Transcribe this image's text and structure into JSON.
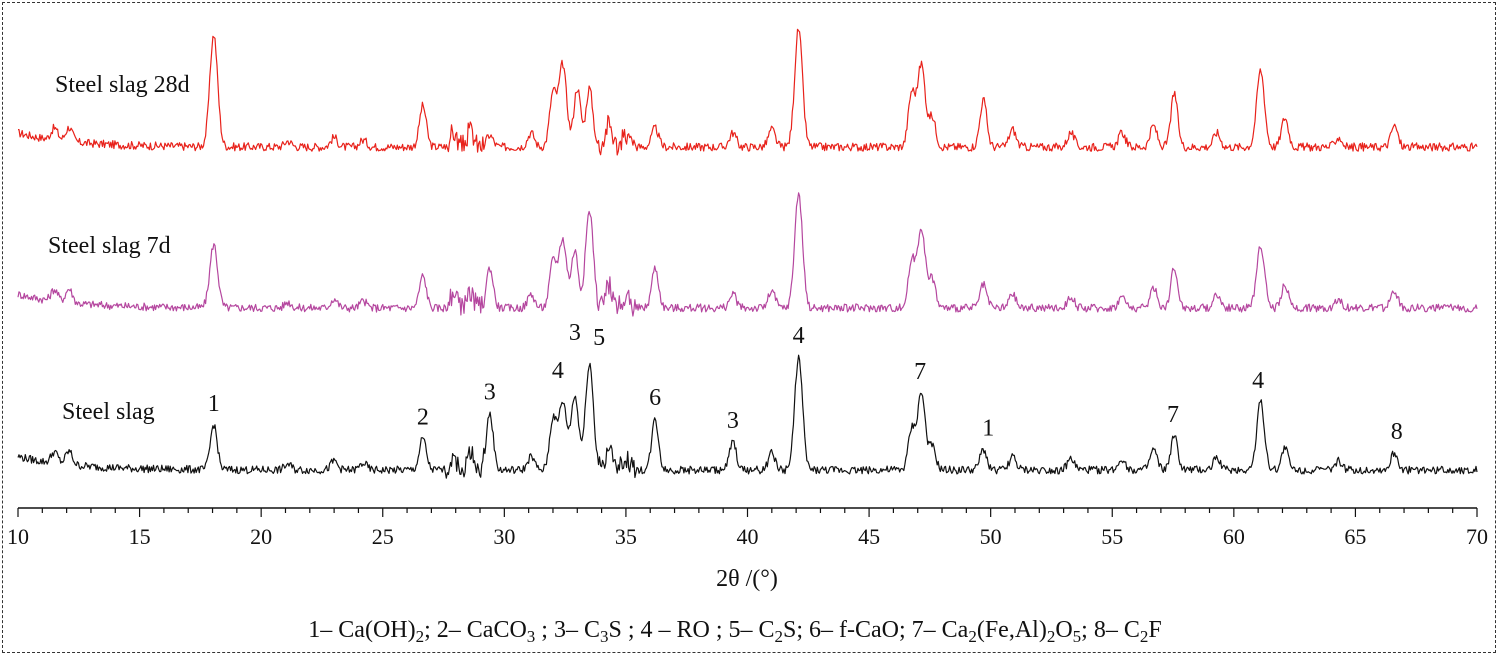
{
  "chart_data": {
    "type": "line",
    "title": "",
    "xlabel": "2θ /(°)",
    "ylabel": "",
    "xlim": [
      10,
      70
    ],
    "xticks": [
      10,
      15,
      20,
      25,
      30,
      35,
      40,
      45,
      50,
      55,
      60,
      65,
      70
    ],
    "grid": false,
    "series": [
      {
        "name": "Steel slag 28d",
        "color": "#e8221b",
        "peaks": [
          [
            11.5,
            0.1
          ],
          [
            12.1,
            0.12
          ],
          [
            18.05,
            0.95
          ],
          [
            21.1,
            0.05
          ],
          [
            23.0,
            0.08
          ],
          [
            24.2,
            0.06
          ],
          [
            26.65,
            0.35
          ],
          [
            27.9,
            0.12
          ],
          [
            28.6,
            0.14
          ],
          [
            29.4,
            0.1
          ],
          [
            31.1,
            0.12
          ],
          [
            32.0,
            0.45
          ],
          [
            32.4,
            0.7
          ],
          [
            33.0,
            0.5
          ],
          [
            33.5,
            0.5
          ],
          [
            34.3,
            0.2
          ],
          [
            35.0,
            0.1
          ],
          [
            36.2,
            0.16
          ],
          [
            39.4,
            0.12
          ],
          [
            41.0,
            0.15
          ],
          [
            42.1,
            1.0
          ],
          [
            46.75,
            0.45
          ],
          [
            47.15,
            0.7
          ],
          [
            47.6,
            0.25
          ],
          [
            49.7,
            0.4
          ],
          [
            50.9,
            0.15
          ],
          [
            53.3,
            0.12
          ],
          [
            55.4,
            0.12
          ],
          [
            56.7,
            0.18
          ],
          [
            57.55,
            0.45
          ],
          [
            59.3,
            0.12
          ],
          [
            61.1,
            0.65
          ],
          [
            62.1,
            0.25
          ],
          [
            64.3,
            0.08
          ],
          [
            66.6,
            0.18
          ]
        ]
      },
      {
        "name": "Steel slag 7d",
        "color": "#b5479f",
        "peaks": [
          [
            11.5,
            0.1
          ],
          [
            12.1,
            0.12
          ],
          [
            18.05,
            0.55
          ],
          [
            21.1,
            0.05
          ],
          [
            23.0,
            0.08
          ],
          [
            24.2,
            0.06
          ],
          [
            26.65,
            0.28
          ],
          [
            27.9,
            0.12
          ],
          [
            28.6,
            0.14
          ],
          [
            29.4,
            0.35
          ],
          [
            31.1,
            0.12
          ],
          [
            32.0,
            0.4
          ],
          [
            32.4,
            0.6
          ],
          [
            32.9,
            0.5
          ],
          [
            33.5,
            0.85
          ],
          [
            34.3,
            0.2
          ],
          [
            35.0,
            0.1
          ],
          [
            36.2,
            0.35
          ],
          [
            39.4,
            0.12
          ],
          [
            41.0,
            0.15
          ],
          [
            42.1,
            1.0
          ],
          [
            46.75,
            0.4
          ],
          [
            47.15,
            0.7
          ],
          [
            47.6,
            0.25
          ],
          [
            49.7,
            0.2
          ],
          [
            50.9,
            0.12
          ],
          [
            53.3,
            0.1
          ],
          [
            55.4,
            0.1
          ],
          [
            56.7,
            0.18
          ],
          [
            57.55,
            0.35
          ],
          [
            59.3,
            0.12
          ],
          [
            61.1,
            0.55
          ],
          [
            62.1,
            0.2
          ],
          [
            64.3,
            0.08
          ],
          [
            66.6,
            0.15
          ]
        ]
      },
      {
        "name": "Steel slag",
        "color": "#111111",
        "peaks": [
          [
            11.5,
            0.1
          ],
          [
            12.1,
            0.12
          ],
          [
            18.05,
            0.4
          ],
          [
            21.1,
            0.05
          ],
          [
            23.0,
            0.08
          ],
          [
            24.2,
            0.06
          ],
          [
            26.65,
            0.28
          ],
          [
            27.9,
            0.12
          ],
          [
            28.6,
            0.14
          ],
          [
            29.4,
            0.5
          ],
          [
            31.1,
            0.12
          ],
          [
            32.0,
            0.45
          ],
          [
            32.4,
            0.6
          ],
          [
            32.9,
            0.65
          ],
          [
            33.5,
            0.95
          ],
          [
            34.3,
            0.2
          ],
          [
            35.0,
            0.1
          ],
          [
            36.2,
            0.45
          ],
          [
            39.4,
            0.25
          ],
          [
            41.0,
            0.15
          ],
          [
            42.1,
            1.0
          ],
          [
            46.75,
            0.35
          ],
          [
            47.15,
            0.68
          ],
          [
            47.6,
            0.2
          ],
          [
            49.7,
            0.18
          ],
          [
            50.9,
            0.12
          ],
          [
            53.3,
            0.1
          ],
          [
            55.4,
            0.1
          ],
          [
            56.7,
            0.18
          ],
          [
            57.55,
            0.3
          ],
          [
            59.3,
            0.12
          ],
          [
            61.1,
            0.6
          ],
          [
            62.1,
            0.2
          ],
          [
            64.3,
            0.08
          ],
          [
            66.6,
            0.15
          ]
        ]
      }
    ],
    "peak_labels": [
      {
        "text": "1",
        "x": 18.05
      },
      {
        "text": "2",
        "x": 26.65
      },
      {
        "text": "3",
        "x": 29.4
      },
      {
        "text": "4",
        "x": 32.2
      },
      {
        "text": "3",
        "x": 32.9
      },
      {
        "text": "5",
        "x": 33.9
      },
      {
        "text": "6",
        "x": 36.2
      },
      {
        "text": "3",
        "x": 39.4
      },
      {
        "text": "4",
        "x": 42.1
      },
      {
        "text": "7",
        "x": 47.1
      },
      {
        "text": "1",
        "x": 49.9
      },
      {
        "text": "7",
        "x": 57.5
      },
      {
        "text": "4",
        "x": 61.0
      },
      {
        "text": "8",
        "x": 66.7
      }
    ],
    "legend": "1– Ca(OH)2;  2– CaCO3 ; 3– C3S ; 4 – RO ; 5– C2S;  6– f-CaO;  7– Ca2(Fe,Al)2O5; 8– C2F"
  }
}
